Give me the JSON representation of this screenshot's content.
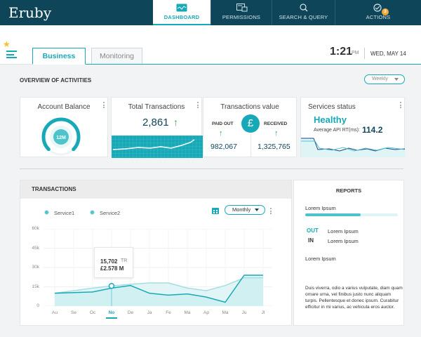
{
  "app": {
    "title": "Eruby"
  },
  "nav": [
    {
      "label": "DASHBOARD",
      "icon": "dashboard-icon",
      "active": true
    },
    {
      "label": "PERMISSIONS",
      "icon": "permissions-icon"
    },
    {
      "label": "SEARCH & QUERY",
      "icon": "search-icon"
    },
    {
      "label": "ACTIONS",
      "icon": "actions-icon",
      "badge": "3"
    }
  ],
  "tabs": [
    {
      "label": "Business",
      "active": true
    },
    {
      "label": "Monitoring"
    }
  ],
  "clock": {
    "time": "1:21",
    "ampm": "PM",
    "date": "WED, MAY 14"
  },
  "overview": {
    "title": "OVERVIEW OF ACTIVITIES",
    "period": "Weekly",
    "account_balance": {
      "title": "Account Balance",
      "value": "12M",
      "level": 0.75
    },
    "total_transactions": {
      "title": "Total Transactions",
      "value": "2,861",
      "trend": "↑"
    },
    "transactions_value": {
      "title": "Transactions value",
      "currency": "£",
      "paid_out_label": "PAID OUT",
      "paid_out_value": "982,067",
      "received_label": "RECEIVED",
      "received_value": "1,325,765",
      "arrow": "↑"
    },
    "services_status": {
      "title": "Services status",
      "status": "Healthy",
      "metric_label": "Average API RT(ms):",
      "metric_value": "114.2"
    }
  },
  "transactions_panel": {
    "title": "TRANSACTIONS",
    "period": "Monthly",
    "calendar_icon": "calendar-icon"
  },
  "chart_data": {
    "type": "area",
    "x": [
      "Au",
      "Se",
      "Oc",
      "No",
      "De",
      "Ja",
      "Fe",
      "Ma",
      "Ap",
      "Ma",
      "Ju",
      "Jl"
    ],
    "selected": "No",
    "ylim": [
      0,
      60000
    ],
    "yticks": [
      "0",
      "15k",
      "30k",
      "45k",
      "60k"
    ],
    "series": [
      {
        "name": "Service1",
        "values": [
          10000,
          10500,
          11000,
          14000,
          16000,
          10000,
          8500,
          9500,
          7000,
          3000,
          24000,
          24000
        ]
      },
      {
        "name": "Service2",
        "values": [
          10000,
          12000,
          14000,
          15702,
          17000,
          18000,
          18000,
          14000,
          12000,
          16000,
          22000,
          22000
        ]
      }
    ],
    "tooltip": {
      "line1": "15,702",
      "line1_unit": "TR",
      "line2": "£2.578 M"
    }
  },
  "reports": {
    "title": "REPORTS",
    "item1": "Lorem Ipsum",
    "bar_progress": 0.6,
    "out_label": "OUT",
    "out_text": "Lorem Ipsum",
    "in_label": "IN",
    "in_text": "Lorem Ipsum",
    "item2": "Lorem Ipsum",
    "description": "Duis viverra, odio a varius vulputate, diam quam ornare urna, vel finibus justo nunc aliquam turpis. Pellentesque et donec ipsum. Curabitur efficitur in mi varius, ac vehicula eros auctor."
  },
  "colors": {
    "nav_bg": "#0f4559",
    "accent": "#18a9b8",
    "badge": "#f2a93b",
    "chart_fill": "#dff4f5"
  }
}
